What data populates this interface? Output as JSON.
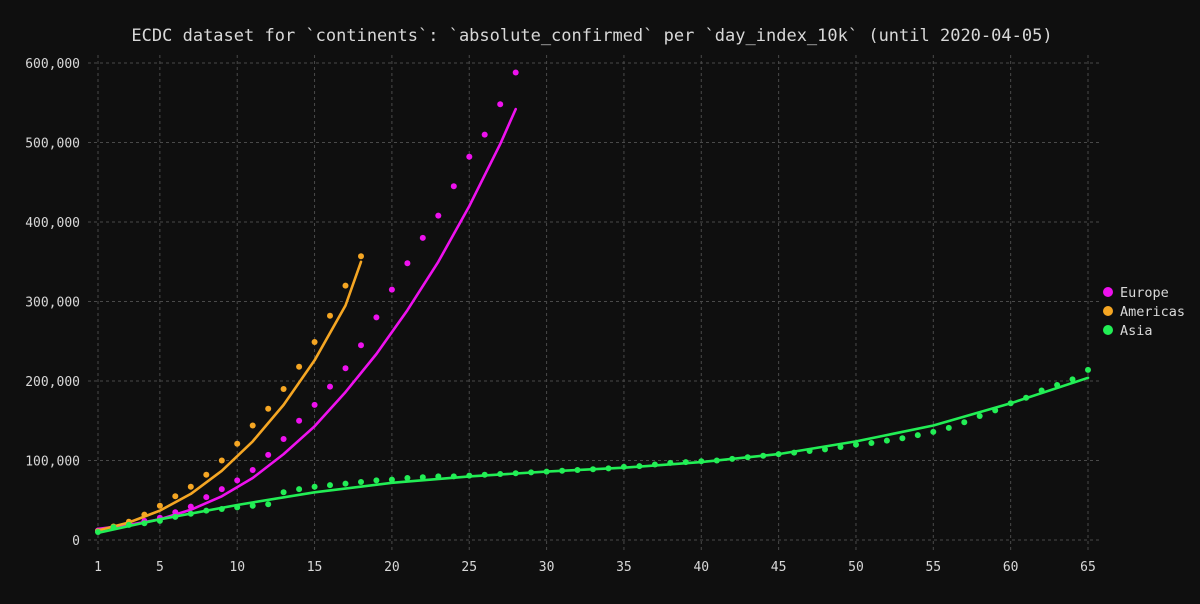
{
  "chart_data": {
    "type": "scatter",
    "title": "ECDC dataset for `continents`: `absolute_confirmed` per `day_index_10k` (until 2020-04-05)",
    "xlabel": "",
    "ylabel": "",
    "xlim": [
      1,
      65
    ],
    "ylim": [
      0,
      600000
    ],
    "xticks": [
      1,
      5,
      10,
      15,
      20,
      25,
      30,
      35,
      40,
      45,
      50,
      55,
      60,
      65
    ],
    "yticks": [
      0,
      100000,
      200000,
      300000,
      400000,
      500000,
      600000
    ],
    "xtick_labels": [
      "1",
      "5",
      "10",
      "15",
      "20",
      "25",
      "30",
      "35",
      "40",
      "45",
      "50",
      "55",
      "60",
      "65"
    ],
    "ytick_labels": [
      "0",
      "100,000",
      "200,000",
      "300,000",
      "400,000",
      "500,000",
      "600,000"
    ],
    "grid": true,
    "legend_position": "right",
    "background": "#0f0f0f",
    "series": [
      {
        "name": "Europe",
        "color": "#ee11ee",
        "x": [
          1,
          2,
          3,
          4,
          5,
          6,
          7,
          8,
          9,
          10,
          11,
          12,
          13,
          14,
          15,
          16,
          17,
          18,
          19,
          20,
          21,
          22,
          23,
          24,
          25,
          26,
          27,
          28
        ],
        "y": [
          12000,
          16000,
          20000,
          24000,
          28000,
          35000,
          42000,
          54000,
          64000,
          75000,
          88000,
          107000,
          127000,
          150000,
          170000,
          193000,
          216000,
          245000,
          280000,
          315000,
          348000,
          380000,
          408000,
          445000,
          482000,
          510000,
          548000,
          588000
        ],
        "fit_x": [
          1,
          3,
          5,
          7,
          9,
          11,
          13,
          15,
          17,
          19,
          21,
          23,
          25,
          27,
          28
        ],
        "fit_y": [
          14000,
          19000,
          26000,
          38000,
          55000,
          78000,
          108000,
          143000,
          186000,
          234000,
          289000,
          350000,
          420000,
          498000,
          542000
        ]
      },
      {
        "name": "Americas",
        "color": "#f5a623",
        "x": [
          1,
          2,
          3,
          4,
          5,
          6,
          7,
          8,
          9,
          10,
          11,
          12,
          13,
          14,
          15,
          16,
          17,
          18
        ],
        "y": [
          11000,
          17000,
          23000,
          32000,
          43000,
          55000,
          67000,
          82000,
          100000,
          121000,
          144000,
          165000,
          190000,
          218000,
          249000,
          282000,
          320000,
          357000
        ],
        "fit_x": [
          1,
          3,
          5,
          7,
          9,
          11,
          13,
          15,
          17,
          18
        ],
        "fit_y": [
          12000,
          22000,
          37000,
          58000,
          87000,
          124000,
          170000,
          226000,
          295000,
          350000
        ]
      },
      {
        "name": "Asia",
        "color": "#22ee55",
        "x": [
          1,
          2,
          3,
          4,
          5,
          6,
          7,
          8,
          9,
          10,
          11,
          12,
          13,
          14,
          15,
          16,
          17,
          18,
          19,
          20,
          21,
          22,
          23,
          24,
          25,
          26,
          27,
          28,
          29,
          30,
          31,
          32,
          33,
          34,
          35,
          36,
          37,
          38,
          39,
          40,
          41,
          42,
          43,
          44,
          45,
          46,
          47,
          48,
          49,
          50,
          51,
          52,
          53,
          54,
          55,
          56,
          57,
          58,
          59,
          60,
          61,
          62,
          63,
          64,
          65
        ],
        "y": [
          10000,
          16000,
          19000,
          21000,
          24000,
          29000,
          33000,
          37000,
          39000,
          41000,
          43000,
          45000,
          60000,
          64000,
          67000,
          69000,
          71000,
          73000,
          75000,
          76000,
          78000,
          79000,
          80000,
          80000,
          81000,
          82000,
          83000,
          84000,
          85000,
          86000,
          87000,
          88000,
          89000,
          90000,
          92000,
          93000,
          95000,
          97000,
          98000,
          99000,
          100000,
          102000,
          104000,
          106000,
          108000,
          110000,
          112000,
          114000,
          117000,
          120000,
          122000,
          125000,
          128000,
          132000,
          136000,
          141000,
          148000,
          156000,
          163000,
          172000,
          179000,
          188000,
          195000,
          202000,
          214000
        ],
        "fit_x": [
          1,
          5,
          10,
          15,
          20,
          25,
          30,
          35,
          40,
          45,
          50,
          55,
          60,
          65
        ],
        "fit_y": [
          9000,
          26000,
          44000,
          60000,
          72000,
          80000,
          86000,
          91000,
          98000,
          108000,
          124000,
          144000,
          172000,
          204000
        ]
      }
    ]
  }
}
